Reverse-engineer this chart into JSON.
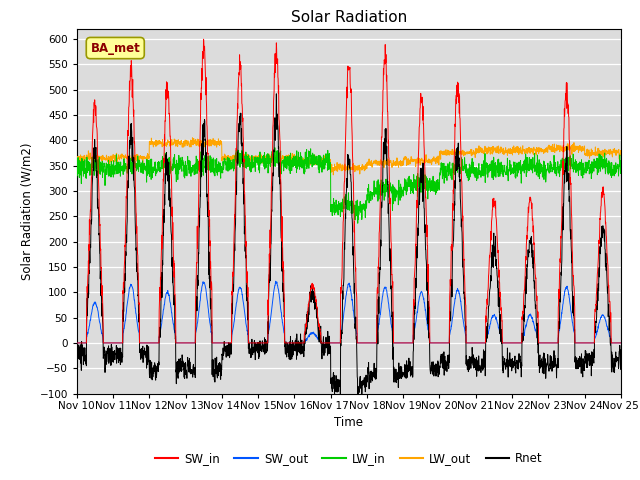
{
  "title": "Solar Radiation",
  "ylabel": "Solar Radiation (W/m2)",
  "xlabel": "Time",
  "ylim": [
    -100,
    620
  ],
  "yticks": [
    -100,
    -50,
    0,
    50,
    100,
    150,
    200,
    250,
    300,
    350,
    400,
    450,
    500,
    550,
    600
  ],
  "xlim": [
    0,
    360
  ],
  "xtick_labels": [
    "Nov 10",
    "Nov 11",
    "Nov 12",
    "Nov 13",
    "Nov 14",
    "Nov 15",
    "Nov 16",
    "Nov 17",
    "Nov 18",
    "Nov 19",
    "Nov 20",
    "Nov 21",
    "Nov 22",
    "Nov 23",
    "Nov 24",
    "Nov 25"
  ],
  "xtick_positions": [
    0,
    24,
    48,
    72,
    96,
    120,
    144,
    168,
    192,
    216,
    240,
    264,
    288,
    312,
    336,
    360
  ],
  "colors": {
    "SW_in": "#FF0000",
    "SW_out": "#0055FF",
    "LW_in": "#00CC00",
    "LW_out": "#FFA500",
    "Rnet": "#000000"
  },
  "legend_label": "BA_met",
  "bg_inner": "#DCDCDC"
}
